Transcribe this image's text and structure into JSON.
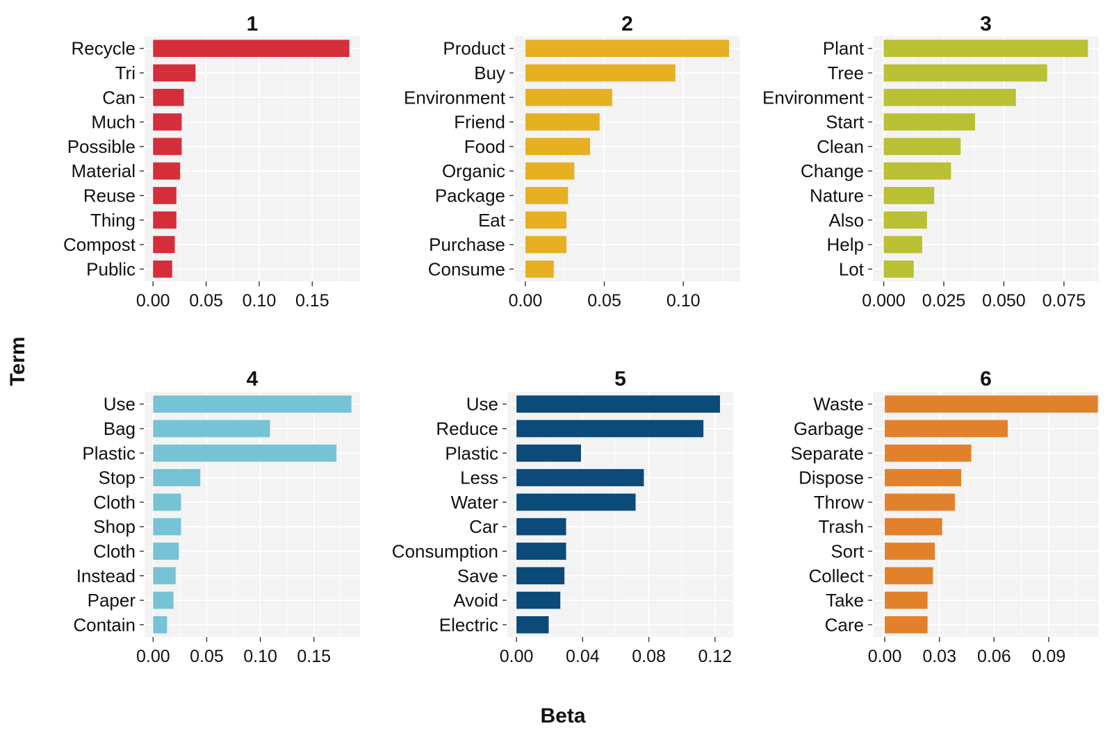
{
  "chart_data": {
    "type": "bar",
    "orientation": "horizontal",
    "xlabel": "Beta",
    "ylabel": "Term",
    "panels": [
      {
        "title": "1",
        "color": "#d52e3b",
        "xlim": [
          -0.008,
          0.195
        ],
        "xticks": [
          0,
          0.05,
          0.1,
          0.15
        ],
        "tick_labels": [
          "0.00",
          "0.05",
          "0.10",
          "0.15"
        ],
        "categories": [
          "Recycle",
          "Tri",
          "Can",
          "Much",
          "Possible",
          "Material",
          "Reuse",
          "Thing",
          "Compost",
          "Public"
        ],
        "values": [
          0.185,
          0.04,
          0.029,
          0.027,
          0.027,
          0.0255,
          0.022,
          0.022,
          0.0205,
          0.018
        ]
      },
      {
        "title": "2",
        "color": "#e6b022",
        "xlim": [
          -0.007,
          0.136
        ],
        "xticks": [
          0,
          0.05,
          0.1
        ],
        "tick_labels": [
          "0.00",
          "0.05",
          "0.10"
        ],
        "categories": [
          "Product",
          "Buy",
          "Environment",
          "Friend",
          "Food",
          "Organic",
          "Package",
          "Eat",
          "Purchase",
          "Consume"
        ],
        "values": [
          0.129,
          0.095,
          0.055,
          0.047,
          0.041,
          0.031,
          0.027,
          0.026,
          0.026,
          0.018
        ]
      },
      {
        "title": "3",
        "color": "#bac033",
        "xlim": [
          -0.0045,
          0.0895
        ],
        "xticks": [
          0,
          0.025,
          0.05,
          0.075
        ],
        "tick_labels": [
          "0.000",
          "0.025",
          "0.050",
          "0.075"
        ],
        "categories": [
          "Plant",
          "Tree",
          "Environment",
          "Start",
          "Clean",
          "Change",
          "Nature",
          "Also",
          "Help",
          "Lot"
        ],
        "values": [
          0.085,
          0.068,
          0.055,
          0.038,
          0.032,
          0.028,
          0.021,
          0.018,
          0.016,
          0.0125
        ]
      },
      {
        "title": "4",
        "color": "#76c3d5",
        "xlim": [
          -0.008,
          0.193
        ],
        "xticks": [
          0,
          0.05,
          0.1,
          0.15
        ],
        "tick_labels": [
          "0.00",
          "0.05",
          "0.10",
          "0.15"
        ],
        "categories": [
          "Use",
          "Bag",
          "Plastic",
          "Stop",
          "Cloth",
          "Shop",
          "Cloth",
          "Instead",
          "Paper",
          "Contain"
        ],
        "values": [
          0.185,
          0.109,
          0.171,
          0.044,
          0.026,
          0.026,
          0.024,
          0.021,
          0.019,
          0.013
        ]
      },
      {
        "title": "5",
        "color": "#0b4a79",
        "xlim": [
          -0.0055,
          0.131
        ],
        "xticks": [
          0,
          0.04,
          0.08,
          0.12
        ],
        "tick_labels": [
          "0.00",
          "0.04",
          "0.08",
          "0.12"
        ],
        "categories": [
          "Use",
          "Reduce",
          "Plastic",
          "Less",
          "Water",
          "Car",
          "Consumption",
          "Save",
          "Avoid",
          "Electric"
        ],
        "values": [
          0.123,
          0.113,
          0.039,
          0.077,
          0.072,
          0.03,
          0.03,
          0.029,
          0.0265,
          0.0195
        ]
      },
      {
        "title": "6",
        "color": "#e2812b",
        "xlim": [
          -0.0065,
          0.1175
        ],
        "xticks": [
          0,
          0.03,
          0.06,
          0.09
        ],
        "tick_labels": [
          "0.00",
          "0.03",
          "0.06",
          "0.09"
        ],
        "categories": [
          "Waste",
          "Garbage",
          "Separate",
          "Dispose",
          "Throw",
          "Trash",
          "Sort",
          "Collect",
          "Take",
          "Care"
        ],
        "values": [
          0.117,
          0.0675,
          0.0475,
          0.042,
          0.0385,
          0.0315,
          0.0275,
          0.0265,
          0.0235,
          0.0235
        ]
      }
    ]
  }
}
